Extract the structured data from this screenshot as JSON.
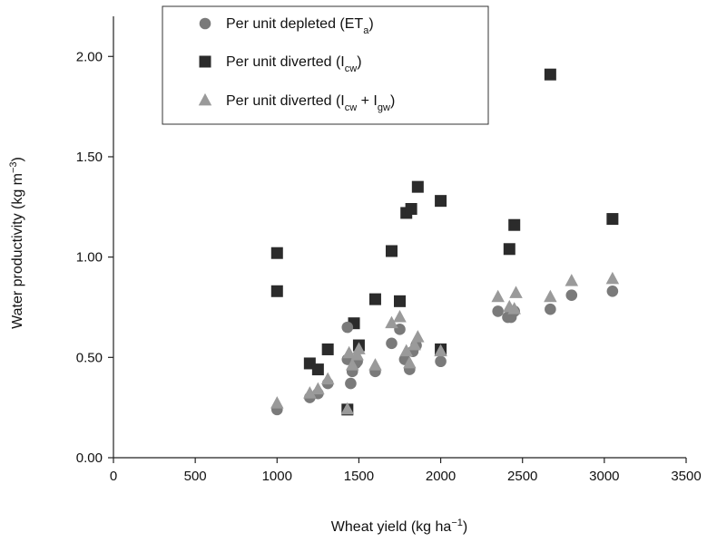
{
  "chart_data": {
    "type": "scatter",
    "xlabel": {
      "base": "Wheat yield (kg ha",
      "sup": "−1",
      "end": ")"
    },
    "ylabel": {
      "base": "Water productivity (kg m",
      "sup": "−3",
      "end": ")"
    },
    "xlim": [
      0,
      3500
    ],
    "ylim": [
      0,
      2.2
    ],
    "xticks": [
      0,
      500,
      1000,
      1500,
      2000,
      2500,
      3000,
      3500
    ],
    "xtick_labels": [
      "0",
      "500",
      "1000",
      "1500",
      "2000",
      "2500",
      "3000",
      "3500"
    ],
    "yticks": [
      0,
      0.5,
      1.0,
      1.5,
      2.0
    ],
    "ytick_labels": [
      "0.00",
      "0.50",
      "1.00",
      "1.50",
      "2.00"
    ],
    "grid": false,
    "legend_position": "top-center",
    "series": [
      {
        "key": "depleted",
        "legend_parts": [
          {
            "t": "Per unit depleted (ET",
            "s": "normal"
          },
          {
            "t": "a",
            "s": "sub"
          },
          {
            "t": ")",
            "s": "normal"
          }
        ],
        "marker": "circle",
        "color": "#7a7a7a",
        "points": [
          [
            1000,
            0.24
          ],
          [
            1200,
            0.3
          ],
          [
            1250,
            0.32
          ],
          [
            1310,
            0.37
          ],
          [
            1430,
            0.65
          ],
          [
            1430,
            0.49
          ],
          [
            1450,
            0.37
          ],
          [
            1460,
            0.43
          ],
          [
            1480,
            0.47
          ],
          [
            1490,
            0.48
          ],
          [
            1600,
            0.43
          ],
          [
            1700,
            0.57
          ],
          [
            1750,
            0.64
          ],
          [
            1780,
            0.49
          ],
          [
            1810,
            0.44
          ],
          [
            1830,
            0.53
          ],
          [
            1850,
            0.56
          ],
          [
            2000,
            0.48
          ],
          [
            2350,
            0.73
          ],
          [
            2410,
            0.7
          ],
          [
            2430,
            0.7
          ],
          [
            2450,
            0.73
          ],
          [
            2670,
            0.74
          ],
          [
            2800,
            0.81
          ],
          [
            3050,
            0.83
          ]
        ]
      },
      {
        "key": "diverted_cw",
        "legend_parts": [
          {
            "t": "Per unit diverted (I",
            "s": "normal"
          },
          {
            "t": "cw",
            "s": "sub"
          },
          {
            "t": ")",
            "s": "normal"
          }
        ],
        "marker": "square",
        "color": "#2b2b2b",
        "points": [
          [
            1000,
            1.02
          ],
          [
            1000,
            0.83
          ],
          [
            1200,
            0.47
          ],
          [
            1250,
            0.44
          ],
          [
            1310,
            0.54
          ],
          [
            1430,
            0.24
          ],
          [
            1470,
            0.67
          ],
          [
            1500,
            0.56
          ],
          [
            1600,
            0.79
          ],
          [
            1700,
            1.03
          ],
          [
            1750,
            0.78
          ],
          [
            1790,
            1.22
          ],
          [
            1820,
            1.24
          ],
          [
            1860,
            1.35
          ],
          [
            2000,
            1.28
          ],
          [
            2000,
            0.54
          ],
          [
            2420,
            1.04
          ],
          [
            2450,
            1.16
          ],
          [
            2670,
            1.91
          ],
          [
            3050,
            1.19
          ]
        ]
      },
      {
        "key": "diverted_cw_gw",
        "legend_parts": [
          {
            "t": "Per unit diverted (I",
            "s": "normal"
          },
          {
            "t": "cw",
            "s": "sub"
          },
          {
            "t": " + I",
            "s": "normal"
          },
          {
            "t": "gw",
            "s": "sub"
          },
          {
            "t": ")",
            "s": "normal"
          }
        ],
        "marker": "triangle",
        "color": "#9a9a9a",
        "points": [
          [
            1000,
            0.27
          ],
          [
            1200,
            0.32
          ],
          [
            1250,
            0.34
          ],
          [
            1310,
            0.39
          ],
          [
            1430,
            0.24
          ],
          [
            1440,
            0.52
          ],
          [
            1460,
            0.46
          ],
          [
            1490,
            0.51
          ],
          [
            1500,
            0.54
          ],
          [
            1600,
            0.46
          ],
          [
            1700,
            0.67
          ],
          [
            1750,
            0.7
          ],
          [
            1790,
            0.53
          ],
          [
            1810,
            0.47
          ],
          [
            1840,
            0.56
          ],
          [
            1860,
            0.6
          ],
          [
            2000,
            0.53
          ],
          [
            2350,
            0.8
          ],
          [
            2420,
            0.75
          ],
          [
            2450,
            0.74
          ],
          [
            2460,
            0.82
          ],
          [
            2670,
            0.8
          ],
          [
            2800,
            0.88
          ],
          [
            3050,
            0.89
          ]
        ]
      }
    ]
  }
}
